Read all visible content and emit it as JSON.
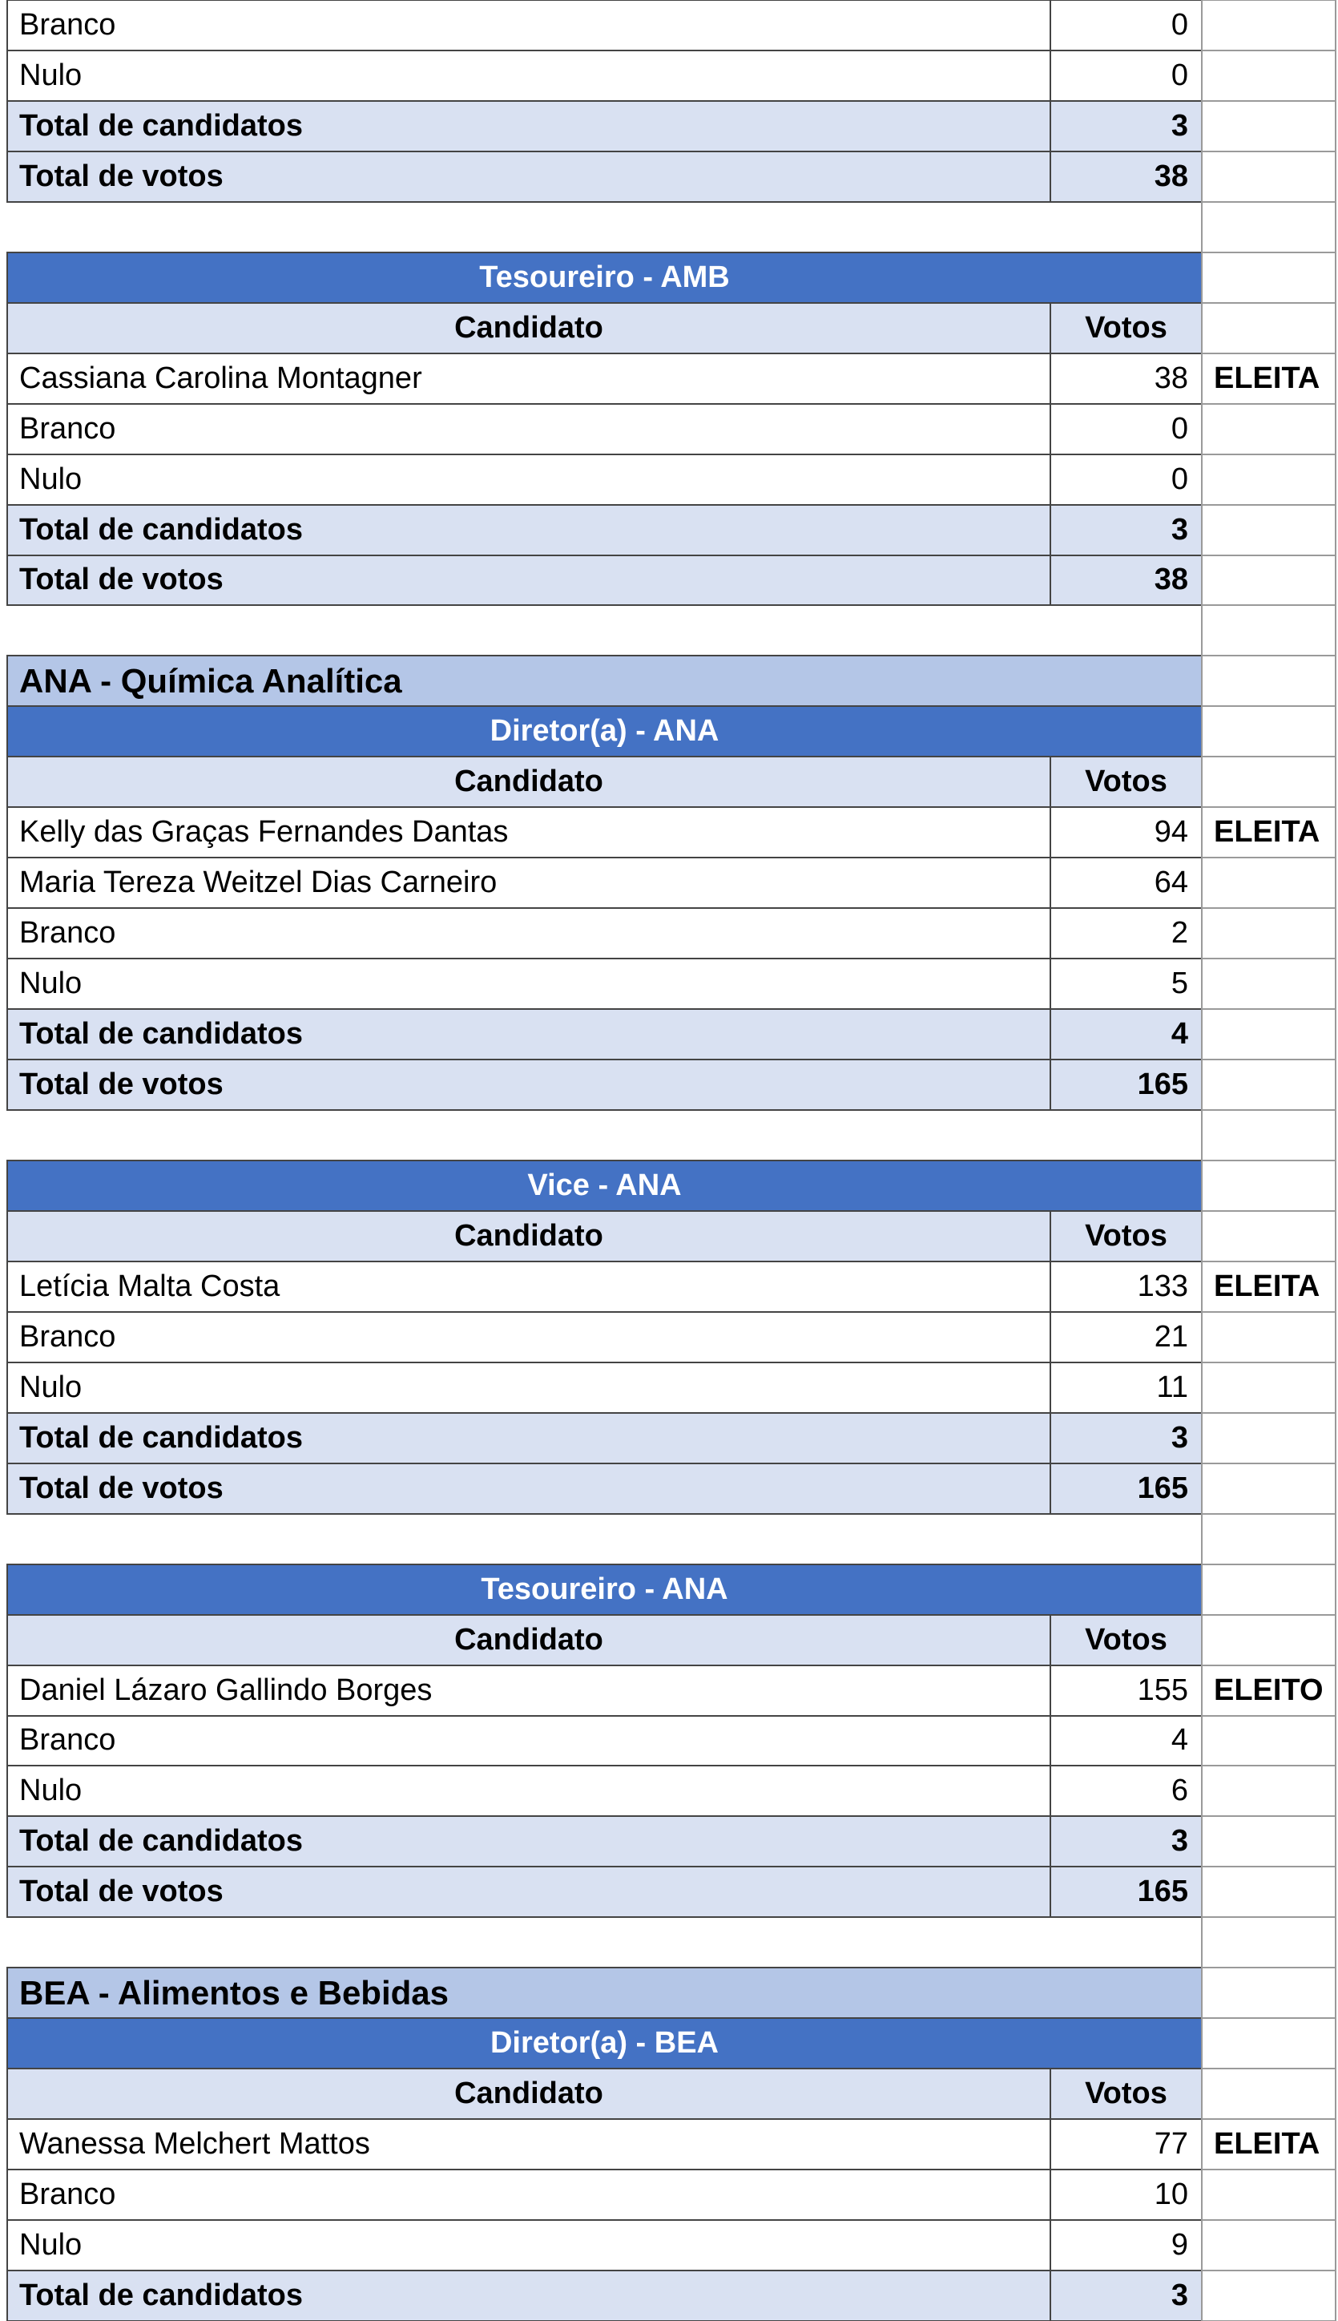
{
  "tables": [
    {
      "rows": [
        {
          "candidate": "Branco",
          "votes": 0
        },
        {
          "candidate": "Nulo",
          "votes": 0
        }
      ],
      "totals": [
        {
          "label": "Total de candidatos",
          "value": 3
        },
        {
          "label": "Total de votos",
          "value": 38
        }
      ]
    },
    {
      "title": "Tesoureiro - AMB",
      "header": [
        "Candidato",
        "Votos"
      ],
      "rows": [
        {
          "candidate": "Cassiana Carolina Montagner",
          "votes": 38,
          "result": "ELEITA"
        },
        {
          "candidate": "Branco",
          "votes": 0
        },
        {
          "candidate": "Nulo",
          "votes": 0
        }
      ],
      "totals": [
        {
          "label": "Total de candidatos",
          "value": 3
        },
        {
          "label": "Total de votos",
          "value": 38
        }
      ]
    },
    {
      "section": "ANA - Química Analítica",
      "title": "Diretor(a) - ANA",
      "header": [
        "Candidato",
        "Votos"
      ],
      "rows": [
        {
          "candidate": "Kelly das Graças Fernandes Dantas",
          "votes": 94,
          "result": "ELEITA"
        },
        {
          "candidate": "Maria Tereza Weitzel Dias Carneiro",
          "votes": 64
        },
        {
          "candidate": "Branco",
          "votes": 2
        },
        {
          "candidate": "Nulo",
          "votes": 5
        }
      ],
      "totals": [
        {
          "label": "Total de candidatos",
          "value": 4
        },
        {
          "label": "Total de votos",
          "value": 165
        }
      ]
    },
    {
      "title": "Vice - ANA",
      "header": [
        "Candidato",
        "Votos"
      ],
      "rows": [
        {
          "candidate": "Letícia Malta Costa",
          "votes": 133,
          "result": "ELEITA"
        },
        {
          "candidate": "Branco",
          "votes": 21
        },
        {
          "candidate": "Nulo",
          "votes": 11
        }
      ],
      "totals": [
        {
          "label": "Total de candidatos",
          "value": 3
        },
        {
          "label": "Total de votos",
          "value": 165
        }
      ]
    },
    {
      "title": "Tesoureiro - ANA",
      "header": [
        "Candidato",
        "Votos"
      ],
      "rows": [
        {
          "candidate": "Daniel Lázaro Gallindo Borges",
          "votes": 155,
          "result": "ELEITO"
        },
        {
          "candidate": "Branco",
          "votes": 4
        },
        {
          "candidate": "Nulo",
          "votes": 6
        }
      ],
      "totals": [
        {
          "label": "Total de candidatos",
          "value": 3
        },
        {
          "label": "Total de votos",
          "value": 165
        }
      ]
    },
    {
      "section": "BEA - Alimentos e Bebidas",
      "title": "Diretor(a) - BEA",
      "header": [
        "Candidato",
        "Votos"
      ],
      "rows": [
        {
          "candidate": "Wanessa Melchert Mattos",
          "votes": 77,
          "result": "ELEITA"
        },
        {
          "candidate": "Branco",
          "votes": 10
        },
        {
          "candidate": "Nulo",
          "votes": 9
        }
      ],
      "totals": [
        {
          "label": "Total de candidatos",
          "value": 3
        }
      ]
    }
  ]
}
